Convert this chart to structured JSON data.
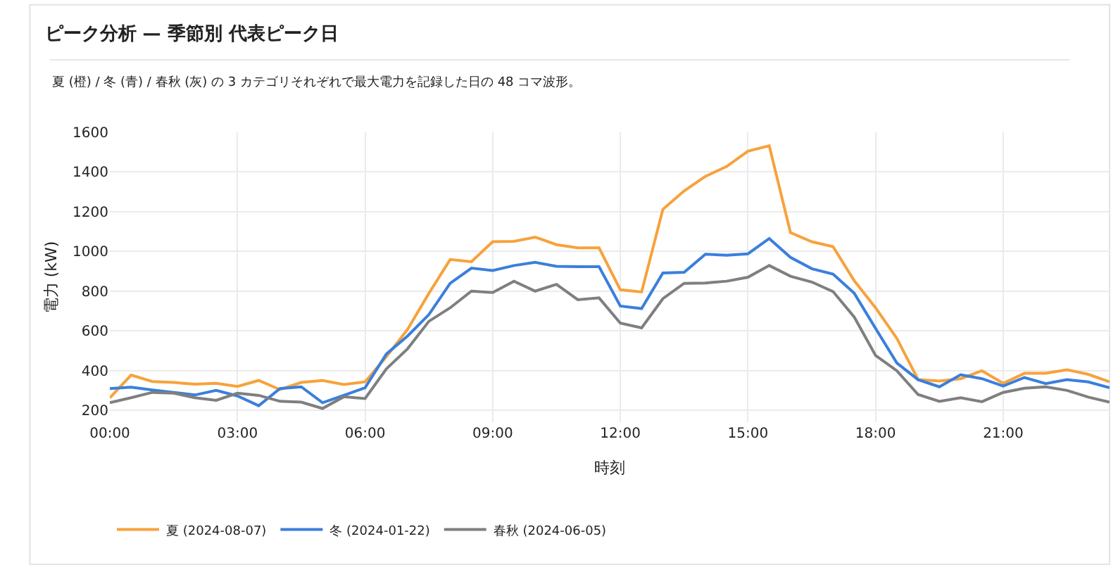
{
  "chart_data": {
    "type": "line",
    "title": "ピーク分析 — 季節別 代表ピーク日",
    "subtitle": "夏 (橙) / 冬 (青) / 春秋 (灰) の 3 カテゴリそれぞれで最大電力を記録した日の 48 コマ波形。",
    "xlabel": "時刻",
    "ylabel": "電力 (kW)",
    "x": [
      0,
      0.5,
      1,
      1.5,
      2,
      2.5,
      3,
      3.5,
      4,
      4.5,
      5,
      5.5,
      6,
      6.5,
      7,
      7.5,
      8,
      8.5,
      9,
      9.5,
      10,
      10.5,
      11,
      11.5,
      12,
      12.5,
      13,
      13.5,
      14,
      14.5,
      15,
      15.5,
      16,
      16.5,
      17,
      17.5,
      18,
      18.5,
      19,
      19.5,
      20,
      20.5,
      21,
      21.5,
      22,
      22.5,
      23,
      23.5
    ],
    "series": [
      {
        "name": "夏 (2024-08-07)",
        "color": "#f7a23c",
        "values": [
          263,
          377,
          345,
          340,
          331,
          336,
          320,
          350,
          304,
          340,
          350,
          330,
          343,
          470,
          608,
          789,
          959,
          948,
          1049,
          1051,
          1072,
          1034,
          1018,
          1018,
          807,
          796,
          1212,
          1305,
          1378,
          1428,
          1505,
          1532,
          1095,
          1049,
          1024,
          852,
          716,
          562,
          354,
          347,
          359,
          399,
          336,
          386,
          386,
          404,
          381,
          343
        ]
      },
      {
        "name": "冬 (2024-01-22)",
        "color": "#3a7fdc",
        "values": [
          309,
          316,
          302,
          290,
          277,
          300,
          272,
          223,
          309,
          318,
          238,
          275,
          313,
          483,
          574,
          682,
          839,
          916,
          904,
          929,
          945,
          925,
          923,
          923,
          725,
          712,
          891,
          895,
          986,
          981,
          988,
          1065,
          970,
          913,
          886,
          789,
          612,
          438,
          354,
          318,
          379,
          359,
          322,
          365,
          334,
          354,
          343,
          313
        ]
      },
      {
        "name": "春秋 (2024-06-05)",
        "color": "#7f7f7f",
        "values": [
          238,
          263,
          290,
          286,
          263,
          250,
          286,
          275,
          245,
          241,
          209,
          268,
          259,
          408,
          510,
          648,
          716,
          800,
          793,
          850,
          800,
          834,
          757,
          766,
          639,
          615,
          762,
          839,
          841,
          850,
          870,
          929,
          875,
          846,
          798,
          669,
          476,
          399,
          279,
          245,
          263,
          243,
          290,
          311,
          318,
          300,
          266,
          241
        ]
      }
    ],
    "xlim": [
      0,
      23.5
    ],
    "xticks": [
      {
        "value": 0,
        "label": "00:00"
      },
      {
        "value": 3,
        "label": "03:00"
      },
      {
        "value": 6,
        "label": "06:00"
      },
      {
        "value": 9,
        "label": "09:00"
      },
      {
        "value": 12,
        "label": "12:00"
      },
      {
        "value": 15,
        "label": "15:00"
      },
      {
        "value": 18,
        "label": "18:00"
      },
      {
        "value": 21,
        "label": "21:00"
      }
    ],
    "ylim": [
      140,
      1600
    ],
    "yticks": [
      200,
      400,
      600,
      800,
      1000,
      1200,
      1400,
      1600
    ],
    "grid": true,
    "legend": "bottom",
    "marker": "none",
    "line_style": "solid"
  }
}
